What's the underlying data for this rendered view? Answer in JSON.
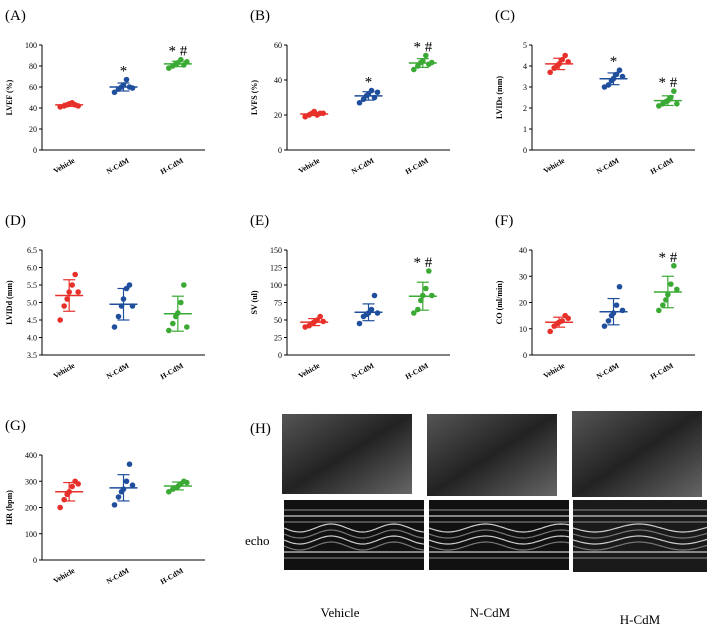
{
  "chart_data": [
    {
      "type": "dot",
      "panel": "(A)",
      "ylabel": "LVEF (%)",
      "categories": [
        "Vehicle",
        "N-CdM",
        "H-CdM"
      ],
      "annotations": [
        null,
        "*",
        "* #"
      ],
      "ylim": [
        0,
        100
      ],
      "yticks": [
        0,
        20,
        40,
        60,
        80,
        100
      ],
      "groups": [
        {
          "color": "#e8302a",
          "values": [
            41,
            42,
            43,
            44,
            45,
            43,
            42
          ],
          "mean": 43,
          "sd": 1.5
        },
        {
          "color": "#1f4e9c",
          "values": [
            55,
            58,
            60,
            62,
            67,
            60,
            59
          ],
          "mean": 60,
          "sd": 3.8
        },
        {
          "color": "#3aaa35",
          "values": [
            78,
            80,
            82,
            83,
            86,
            81,
            84
          ],
          "mean": 82,
          "sd": 2.6
        }
      ]
    },
    {
      "type": "dot",
      "panel": "(B)",
      "ylabel": "LVFS (%)",
      "categories": [
        "Vehicle",
        "N-CdM",
        "H-CdM"
      ],
      "annotations": [
        null,
        "*",
        "* #"
      ],
      "ylim": [
        0,
        60
      ],
      "yticks": [
        0,
        20,
        40,
        60
      ],
      "groups": [
        {
          "color": "#e8302a",
          "values": [
            19,
            20,
            21,
            22,
            20,
            21,
            21
          ],
          "mean": 20.6,
          "sd": 0.9
        },
        {
          "color": "#1f4e9c",
          "values": [
            27,
            29,
            31,
            32,
            34,
            30,
            33
          ],
          "mean": 30.9,
          "sd": 2.4
        },
        {
          "color": "#3aaa35",
          "values": [
            46,
            48,
            50,
            51,
            54,
            49,
            50
          ],
          "mean": 49.7,
          "sd": 2.5
        }
      ]
    },
    {
      "type": "dot",
      "panel": "(C)",
      "ylabel": "LVIDs (mm)",
      "categories": [
        "Vehicle",
        "N-CdM",
        "H-CdM"
      ],
      "annotations": [
        null,
        "*",
        "* #"
      ],
      "ylim": [
        0,
        5
      ],
      "yticks": [
        0,
        1,
        2,
        3,
        4,
        5
      ],
      "groups": [
        {
          "color": "#e8302a",
          "values": [
            3.7,
            3.9,
            4.0,
            4.1,
            4.3,
            4.5,
            4.2
          ],
          "mean": 4.1,
          "sd": 0.27
        },
        {
          "color": "#1f4e9c",
          "values": [
            3.0,
            3.1,
            3.3,
            3.4,
            3.6,
            3.8,
            3.5
          ],
          "mean": 3.39,
          "sd": 0.28
        },
        {
          "color": "#3aaa35",
          "values": [
            2.1,
            2.2,
            2.3,
            2.35,
            2.5,
            2.8,
            2.2
          ],
          "mean": 2.35,
          "sd": 0.23
        }
      ]
    },
    {
      "type": "dot",
      "panel": "(D)",
      "ylabel": "LVIDd (mm)",
      "categories": [
        "Vehicle",
        "N-CdM",
        "H-CdM"
      ],
      "annotations": [
        null,
        null,
        null
      ],
      "ylim": [
        3.5,
        6.5
      ],
      "yticks": [
        3.5,
        {
          "value": 4,
          "label": "4.0"
        },
        4.5,
        {
          "value": 5,
          "label": "5.0"
        },
        5.5,
        {
          "value": 6,
          "label": "6.0"
        },
        6.5
      ],
      "groups": [
        {
          "color": "#e8302a",
          "values": [
            4.5,
            4.9,
            5.1,
            5.3,
            5.5,
            5.8,
            5.3
          ],
          "mean": 5.2,
          "sd": 0.45
        },
        {
          "color": "#1f4e9c",
          "values": [
            4.3,
            4.6,
            4.9,
            5.1,
            5.4,
            5.5,
            4.9
          ],
          "mean": 4.95,
          "sd": 0.45
        },
        {
          "color": "#3aaa35",
          "values": [
            4.2,
            4.4,
            4.6,
            4.7,
            5.0,
            5.5,
            4.3
          ],
          "mean": 4.68,
          "sd": 0.5
        }
      ]
    },
    {
      "type": "dot",
      "panel": "(E)",
      "ylabel": "SV (ul)",
      "categories": [
        "Vehicle",
        "N-CdM",
        "H-CdM"
      ],
      "annotations": [
        null,
        null,
        "* #"
      ],
      "ylim": [
        0,
        150
      ],
      "yticks": [
        0,
        25,
        50,
        75,
        100,
        125,
        150
      ],
      "groups": [
        {
          "color": "#e8302a",
          "values": [
            40,
            42,
            45,
            47,
            50,
            55,
            48
          ],
          "mean": 47,
          "sd": 5
        },
        {
          "color": "#1f4e9c",
          "values": [
            45,
            55,
            58,
            60,
            65,
            85,
            60
          ],
          "mean": 61,
          "sd": 12
        },
        {
          "color": "#3aaa35",
          "values": [
            60,
            65,
            78,
            85,
            95,
            120,
            85
          ],
          "mean": 84,
          "sd": 20
        }
      ]
    },
    {
      "type": "dot",
      "panel": "(F)",
      "ylabel": "CO (ml/min)",
      "categories": [
        "Vehicle",
        "N-CdM",
        "H-CdM"
      ],
      "annotations": [
        null,
        null,
        "* #"
      ],
      "ylim": [
        0,
        40
      ],
      "yticks": [
        0,
        10,
        20,
        30,
        40
      ],
      "groups": [
        {
          "color": "#e8302a",
          "values": [
            9,
            11,
            12,
            12.5,
            13,
            15,
            14
          ],
          "mean": 12.5,
          "sd": 1.9
        },
        {
          "color": "#1f4e9c",
          "values": [
            11,
            13,
            15,
            16,
            19,
            26,
            17
          ],
          "mean": 16.5,
          "sd": 5
        },
        {
          "color": "#3aaa35",
          "values": [
            17,
            19,
            21,
            23,
            27,
            34,
            25
          ],
          "mean": 24,
          "sd": 6
        }
      ]
    },
    {
      "type": "dot",
      "panel": "(G)",
      "ylabel": "HR (bpm)",
      "categories": [
        "Vehicle",
        "N-CdM",
        "H-CdM"
      ],
      "annotations": [
        null,
        null,
        null
      ],
      "ylim": [
        0,
        400
      ],
      "yticks": [
        0,
        100,
        200,
        300,
        400
      ],
      "groups": [
        {
          "color": "#e8302a",
          "values": [
            200,
            230,
            250,
            260,
            280,
            300,
            290
          ],
          "mean": 260,
          "sd": 35
        },
        {
          "color": "#1f4e9c",
          "values": [
            210,
            240,
            260,
            270,
            300,
            365,
            285
          ],
          "mean": 275,
          "sd": 50
        },
        {
          "color": "#3aaa35",
          "values": [
            260,
            270,
            275,
            280,
            290,
            300,
            295
          ],
          "mean": 282,
          "sd": 15
        }
      ]
    }
  ],
  "figure_h": {
    "label": "(H)",
    "row_label": "echo",
    "captions": [
      "Vehicle",
      "N-CdM",
      "H-CdM"
    ]
  }
}
